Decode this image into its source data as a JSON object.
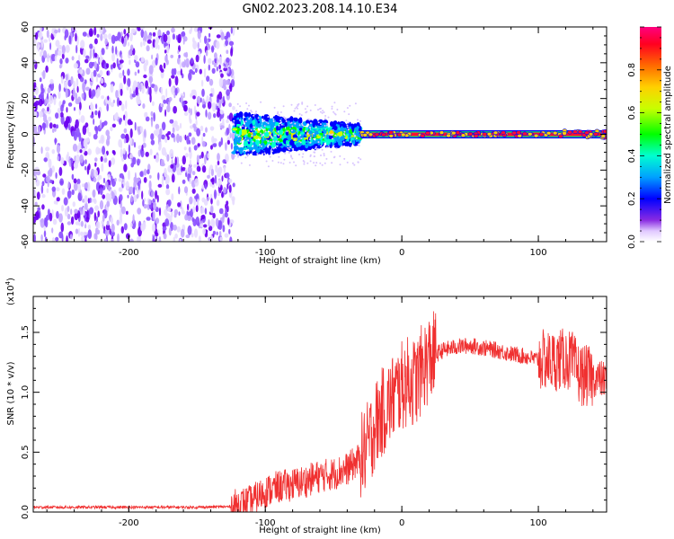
{
  "title": "GN02.2023.208.14.10.E34",
  "colorbar": {
    "label": "Normalized spectral amplitude",
    "ticks": [
      "0.0",
      "0.2",
      "0.4",
      "0.6",
      "0.8"
    ],
    "tick_values": [
      0.0,
      0.2,
      0.4,
      0.6,
      0.8
    ],
    "range": [
      0,
      1
    ]
  },
  "chart_data": [
    {
      "type": "heatmap",
      "name": "spectrogram",
      "xlabel": "Height of straight line (km)",
      "ylabel": "Frequency (Hz)",
      "xlim": [
        -270,
        150
      ],
      "ylim": [
        -60,
        60
      ],
      "x_ticks": [
        -200,
        -100,
        0,
        100
      ],
      "x_tick_labels": [
        "-200",
        "-100",
        "0",
        "100"
      ],
      "y_ticks": [
        -60,
        -40,
        -20,
        0,
        20,
        40,
        60
      ],
      "y_tick_labels": [
        "-60",
        "-40",
        "-20",
        "0",
        "20",
        "40",
        "60"
      ],
      "regions": [
        {
          "x_range": [
            -270,
            -123
          ],
          "freq_range": [
            -60,
            60
          ],
          "amplitude": 0.1,
          "description_level": "low broadband"
        },
        {
          "x_range": [
            -123,
            -30
          ],
          "freq_range": [
            -12,
            12
          ],
          "amplitude": 0.45,
          "description_level": "mixed"
        },
        {
          "x_range": [
            -30,
            150
          ],
          "freq_range": [
            -1.5,
            1.5
          ],
          "amplitude": 0.95,
          "description_level": "high"
        }
      ],
      "colors": {
        "low": "#6a1cff",
        "mid": "#00e0ff",
        "high": "#ff1030"
      }
    },
    {
      "type": "line",
      "name": "snr",
      "xlabel": "Height of straight line (km)",
      "ylabel": "SNR (10 * v/v)",
      "scale_label": "(x10",
      "scale_exp": "4",
      "scale_close": ")",
      "xlim": [
        -270,
        150
      ],
      "ylim": [
        0,
        18000
      ],
      "x_ticks": [
        -200,
        -100,
        0,
        100
      ],
      "x_tick_labels": [
        "-200",
        "-100",
        "0",
        "100"
      ],
      "y_ticks": [
        0,
        5000,
        10000,
        15000
      ],
      "y_tick_labels": [
        "0.0",
        "0.5",
        "1.0",
        "1.5"
      ],
      "color": "#f03030",
      "series": [
        {
          "x": [
            -270,
            -250,
            -200,
            -150,
            -125,
            -110,
            -100,
            -90,
            -80,
            -70,
            -60,
            -50,
            -40,
            -30,
            -25,
            -20,
            -15,
            -10,
            -5,
            0,
            5,
            10,
            15,
            20,
            30,
            40,
            50,
            60,
            70,
            80,
            90,
            100,
            110,
            115,
            120,
            125,
            130,
            140,
            150
          ],
          "y": [
            400,
            400,
            400,
            400,
            450,
            900,
            1700,
            2100,
            2300,
            2600,
            3000,
            3200,
            3600,
            4500,
            5500,
            7200,
            8200,
            9000,
            9800,
            10500,
            11000,
            10800,
            12000,
            12800,
            13500,
            13800,
            13900,
            13700,
            13500,
            13200,
            13000,
            12700,
            12600,
            12700,
            12800,
            12500,
            11500,
            11200,
            11000
          ]
        }
      ]
    }
  ]
}
